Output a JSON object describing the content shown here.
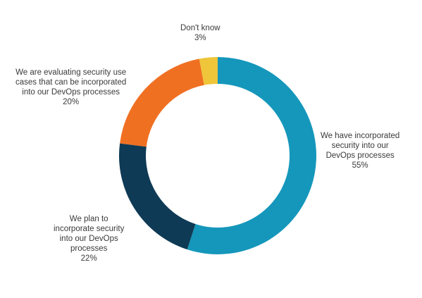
{
  "chart_data": {
    "type": "pie",
    "donut": true,
    "categories": [
      "We have incorporated security into our DevOps processes",
      "We plan to incorporate security into our DevOps processes",
      "We are evaluating security use cases that can be incorporated into our DevOps processes",
      "Don't know"
    ],
    "values": [
      55,
      22,
      20,
      3
    ],
    "value_labels": [
      "55%",
      "22%",
      "20%",
      "3%"
    ],
    "colors": [
      "#1597bb",
      "#0e3a55",
      "#f07022",
      "#efc53a"
    ],
    "label_lines": [
      [
        "We have incorporated",
        "security into our",
        "DevOps processes",
        "55%"
      ],
      [
        "We plan to",
        "incorporate security",
        "into our DevOps",
        "processes",
        "22%"
      ],
      [
        "We are evaluating security use",
        "cases that can be incorporated",
        "into our DevOps processes",
        "20%"
      ],
      [
        "Don't know",
        "3%"
      ]
    ],
    "title": "",
    "legend": "none"
  }
}
